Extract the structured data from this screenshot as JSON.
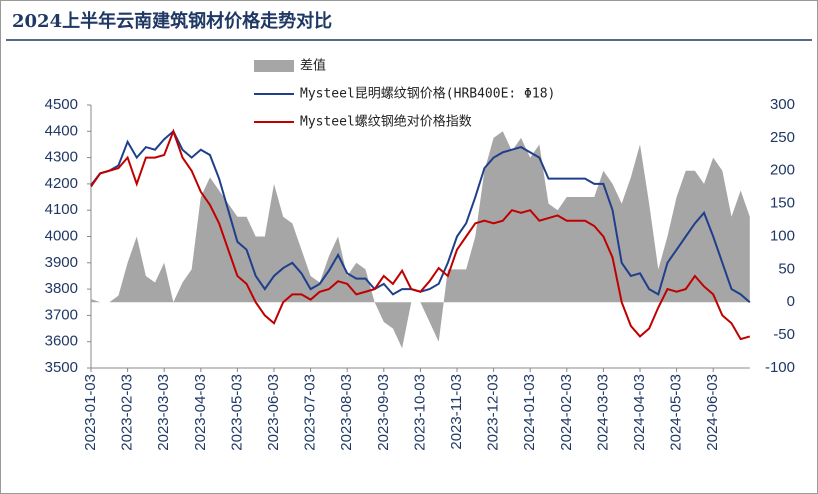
{
  "chart_data": {
    "type": "area-line",
    "title": "2024上半年云南建筑钢材价格走势对比",
    "categories": [
      "2023-01-03",
      null,
      null,
      null,
      "2023-02-03",
      null,
      null,
      null,
      "2023-03-03",
      null,
      null,
      null,
      "2023-04-03",
      null,
      null,
      null,
      "2023-05-03",
      null,
      null,
      null,
      "2023-06-03",
      null,
      null,
      null,
      "2023-07-03",
      null,
      null,
      null,
      "2023-08-03",
      null,
      null,
      null,
      "2023-09-03",
      null,
      null,
      null,
      "2023-10-03",
      null,
      null,
      null,
      "2023-11-03",
      null,
      null,
      null,
      "2023-12-03",
      null,
      null,
      null,
      "2024-01-03",
      null,
      null,
      null,
      "2024-02-03",
      null,
      null,
      null,
      "2024-03-03",
      null,
      null,
      null,
      "2024-04-03",
      null,
      null,
      null,
      "2024-05-03",
      null,
      null,
      null,
      "2024-06-03",
      null,
      null,
      null,
      null
    ],
    "series": [
      {
        "name": "差值",
        "kind": "area",
        "axis": "y2",
        "color": "#a6a6a6",
        "values": [
          5,
          0,
          0,
          10,
          60,
          100,
          40,
          30,
          60,
          0,
          30,
          50,
          160,
          190,
          170,
          150,
          130,
          130,
          100,
          100,
          180,
          130,
          120,
          80,
          40,
          30,
          70,
          100,
          40,
          60,
          50,
          0,
          -30,
          -40,
          -70,
          0,
          0,
          -30,
          -60,
          50,
          50,
          50,
          100,
          200,
          250,
          260,
          230,
          250,
          220,
          240,
          150,
          140,
          160,
          160,
          160,
          160,
          200,
          180,
          150,
          190,
          240,
          150,
          50,
          100,
          160,
          200,
          200,
          180,
          220,
          200,
          130,
          170,
          130
        ]
      },
      {
        "name": "Mysteel昆明螺纹钢价格(HRB400E: Φ18)",
        "kind": "line",
        "axis": "y",
        "color": "#1f3f8c",
        "values": [
          4195,
          4240,
          4250,
          4270,
          4360,
          4300,
          4340,
          4330,
          4370,
          4400,
          4330,
          4300,
          4330,
          4310,
          4220,
          4100,
          3980,
          3950,
          3850,
          3800,
          3850,
          3880,
          3900,
          3860,
          3800,
          3820,
          3870,
          3930,
          3860,
          3840,
          3840,
          3800,
          3820,
          3780,
          3800,
          3800,
          3790,
          3800,
          3820,
          3900,
          4000,
          4050,
          4150,
          4260,
          4300,
          4320,
          4330,
          4340,
          4320,
          4300,
          4220,
          4220,
          4220,
          4220,
          4220,
          4200,
          4200,
          4100,
          3900,
          3850,
          3860,
          3800,
          3780,
          3900,
          3950,
          4000,
          4050,
          4090,
          4000,
          3900,
          3800,
          3780,
          3750
        ]
      },
      {
        "name": "Mysteel螺纹钢绝对价格指数",
        "kind": "line",
        "axis": "y",
        "color": "#c00000",
        "values": [
          4190,
          4240,
          4250,
          4260,
          4300,
          4200,
          4300,
          4300,
          4310,
          4400,
          4300,
          4250,
          4170,
          4120,
          4050,
          3950,
          3850,
          3820,
          3750,
          3700,
          3670,
          3750,
          3780,
          3780,
          3760,
          3790,
          3800,
          3830,
          3820,
          3780,
          3790,
          3800,
          3850,
          3820,
          3870,
          3800,
          3790,
          3830,
          3880,
          3850,
          3950,
          4000,
          4050,
          4060,
          4050,
          4060,
          4100,
          4090,
          4100,
          4060,
          4070,
          4080,
          4060,
          4060,
          4060,
          4040,
          4000,
          3920,
          3750,
          3660,
          3620,
          3650,
          3730,
          3800,
          3790,
          3800,
          3850,
          3810,
          3780,
          3700,
          3670,
          3610,
          3620
        ]
      }
    ],
    "ylim": [
      3500,
      4500
    ],
    "yticks": [
      3500,
      3600,
      3700,
      3800,
      3900,
      4000,
      4100,
      4200,
      4300,
      4400,
      4500
    ],
    "y2lim": [
      -100,
      300
    ],
    "y2ticks": [
      -100,
      -50,
      0,
      50,
      100,
      150,
      200,
      250,
      300
    ]
  }
}
